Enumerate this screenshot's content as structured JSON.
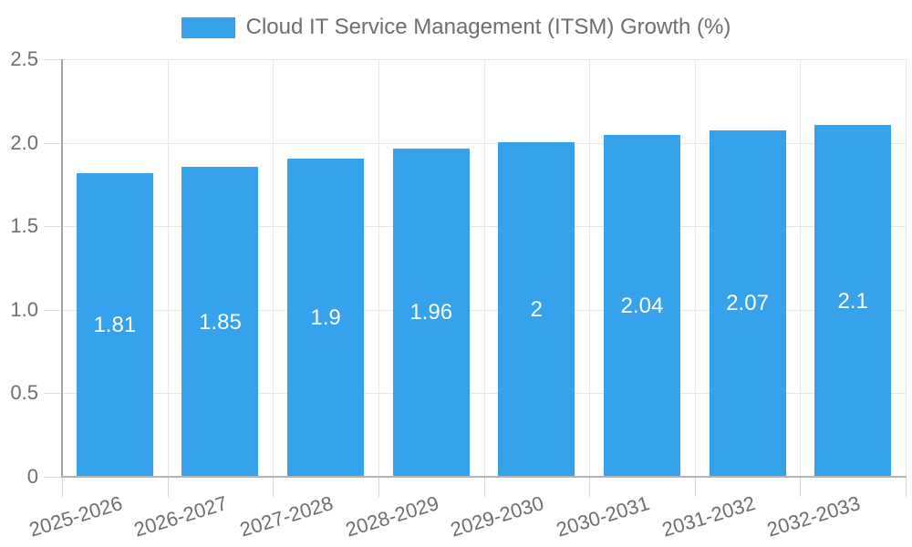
{
  "legend": {
    "label": "Cloud IT Service Management (ITSM) Growth (%)"
  },
  "chart_data": {
    "type": "bar",
    "title": "",
    "xlabel": "",
    "ylabel": "",
    "categories": [
      "2025-2026",
      "2026-2027",
      "2027-2028",
      "2028-2029",
      "2029-2030",
      "2030-2031",
      "2031-2032",
      "2032-2033"
    ],
    "values": [
      1.81,
      1.85,
      1.9,
      1.96,
      2,
      2.04,
      2.07,
      2.1
    ],
    "bar_labels": [
      "1.81",
      "1.85",
      "1.9",
      "1.96",
      "2",
      "2.04",
      "2.07",
      "2.1"
    ],
    "series_name": "Cloud IT Service Management (ITSM) Growth (%)",
    "ylim": [
      0,
      2.5
    ],
    "yticks": [
      0,
      0.5,
      1,
      1.5,
      2,
      2.5
    ],
    "ytick_labels": [
      "0",
      "0.5",
      "1.0",
      "1.5",
      "2.0",
      "2.5"
    ],
    "grid": true,
    "legend_position": "top",
    "colors": {
      "bar": "#36a2eb",
      "bar_label_text": "#ffffff",
      "axis_text": "#6e6e6e",
      "gridline": "#e6e6e6",
      "axis_line": "#a8a8a8"
    }
  }
}
